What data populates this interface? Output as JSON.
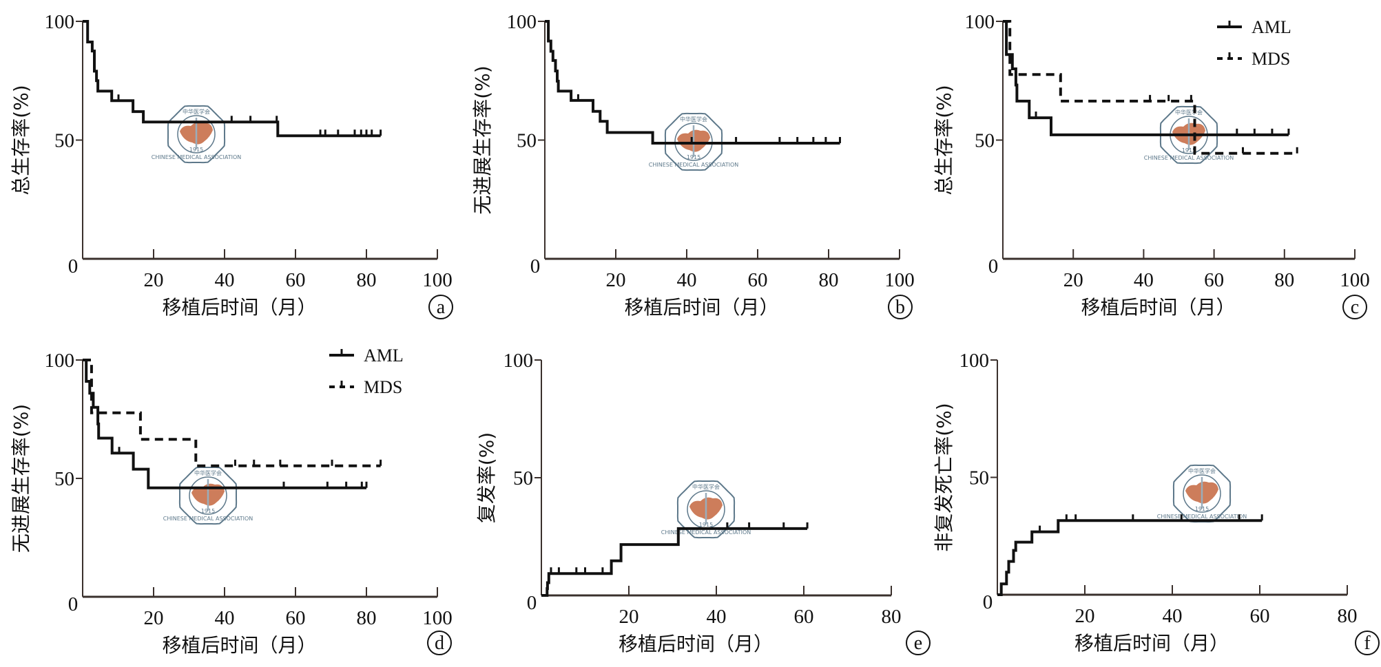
{
  "figure": {
    "x_axis_label": "移植后时间（月）",
    "logo": {
      "cn": "中华医学会",
      "en": "CHINESE MEDICAL ASSOCIATION",
      "year": "1915",
      "color": "#c8704a",
      "ring_color": "#4c6a7e"
    }
  },
  "chart_data": [
    {
      "panel": "a",
      "type": "line",
      "title": "",
      "xlabel": "移植后时间（月）",
      "ylabel": "总生存率(%)",
      "xlim": [
        0,
        100
      ],
      "ylim": [
        0,
        100
      ],
      "xticks": [
        "0",
        "20",
        "40",
        "60",
        "80",
        "100"
      ],
      "yticks": [
        "0",
        "50",
        "100"
      ],
      "legend": null,
      "series": [
        {
          "name": "all",
          "style": "solid",
          "steps": [
            [
              0,
              100
            ],
            [
              1.4,
              91.3
            ],
            [
              2.7,
              87.5
            ],
            [
              3.3,
              79
            ],
            [
              3.9,
              75
            ],
            [
              4.3,
              70.6
            ],
            [
              8.2,
              66.6
            ],
            [
              14.2,
              62
            ],
            [
              17.1,
              57.6
            ],
            [
              55,
              51.8
            ]
          ],
          "end": 84,
          "censored": [
            10.1,
            42,
            47.3,
            54.7,
            67,
            68.4,
            72,
            76.7,
            78.5,
            80,
            81.5,
            84
          ]
        }
      ]
    },
    {
      "panel": "b",
      "type": "line",
      "title": "",
      "xlabel": "移植后时间（月）",
      "ylabel": "无进展生存率(%)",
      "xlim": [
        0,
        100
      ],
      "ylim": [
        0,
        100
      ],
      "xticks": [
        "0",
        "20",
        "40",
        "60",
        "80",
        "100"
      ],
      "yticks": [
        "0",
        "50",
        "100"
      ],
      "legend": null,
      "series": [
        {
          "name": "all",
          "style": "solid",
          "steps": [
            [
              0,
              100
            ],
            [
              1,
              91.7
            ],
            [
              1.7,
              87.4
            ],
            [
              2.3,
              83.5
            ],
            [
              3,
              79.1
            ],
            [
              3.5,
              74.8
            ],
            [
              3.8,
              70.6
            ],
            [
              7.4,
              66.7
            ],
            [
              13.6,
              62.1
            ],
            [
              15.6,
              57.9
            ],
            [
              17.6,
              53.2
            ],
            [
              30.4,
              48.7
            ]
          ],
          "end": 83.2,
          "censored": [
            9.4,
            41.4,
            53.9,
            66.2,
            71.2,
            75.7,
            79.2,
            83.2
          ]
        }
      ]
    },
    {
      "panel": "c",
      "type": "line",
      "title": "",
      "xlabel": "移植后时间（月）",
      "ylabel": "总生存率(%)",
      "xlim": [
        0,
        100
      ],
      "ylim": [
        0,
        100
      ],
      "xticks": [
        "0",
        "20",
        "40",
        "60",
        "80",
        "100"
      ],
      "yticks": [
        "0",
        "50",
        "100"
      ],
      "legend": "top-right",
      "series": [
        {
          "name": "AML",
          "style": "solid",
          "steps": [
            [
              0,
              100
            ],
            [
              1,
              86
            ],
            [
              2.7,
              80
            ],
            [
              3.7,
              73.2
            ],
            [
              4,
              66.4
            ],
            [
              7.5,
              59.4
            ],
            [
              13.7,
              52.2
            ]
          ],
          "end": 81.2,
          "censored": [
            9.4,
            66.5,
            71.5,
            76.5,
            81.2
          ]
        },
        {
          "name": "MDS",
          "style": "dashed",
          "steps": [
            [
              0,
              100
            ],
            [
              2,
              77.6
            ],
            [
              16.4,
              66.4
            ],
            [
              54.5,
              44.4
            ]
          ],
          "end": 83.6,
          "censored": [
            41.8,
            47.1,
            53.5,
            68.2,
            83.6
          ]
        }
      ]
    },
    {
      "panel": "d",
      "type": "line",
      "title": "",
      "xlabel": "移植后时间（月）",
      "ylabel": "无进展生存率(%)",
      "xlim": [
        0,
        100
      ],
      "ylim": [
        0,
        100
      ],
      "xticks": [
        "0",
        "20",
        "40",
        "60",
        "80",
        "100"
      ],
      "yticks": [
        "0",
        "50",
        "100"
      ],
      "legend": "top-right",
      "series": [
        {
          "name": "AML",
          "style": "solid",
          "steps": [
            [
              0,
              100
            ],
            [
              1,
              91
            ],
            [
              2,
              86
            ],
            [
              3,
              80
            ],
            [
              4.3,
              73
            ],
            [
              4.5,
              67
            ],
            [
              8.3,
              60.7
            ],
            [
              14.3,
              53.9
            ],
            [
              18.5,
              46
            ]
          ],
          "end": 80,
          "censored": [
            10.3,
            56.7,
            69,
            74.3,
            78.7,
            80
          ]
        },
        {
          "name": "MDS",
          "style": "dashed",
          "steps": [
            [
              0,
              100
            ],
            [
              2.5,
              77.7
            ],
            [
              16.3,
              66.5
            ],
            [
              31.9,
              55.3
            ]
          ],
          "end": 84,
          "censored": [
            43,
            48.3,
            55.7,
            70.3,
            84
          ]
        }
      ]
    },
    {
      "panel": "e",
      "type": "line",
      "title": "",
      "xlabel": "移植后时间（月）",
      "ylabel": "复发率(%)",
      "xlim": [
        0,
        80
      ],
      "ylim": [
        0,
        100
      ],
      "xticks": [
        "0",
        "20",
        "40",
        "60",
        "80"
      ],
      "yticks": [
        "0",
        "50",
        "100"
      ],
      "legend": null,
      "series": [
        {
          "name": "all",
          "style": "solid",
          "steps": [
            [
              0,
              0
            ],
            [
              1.3,
              2.9
            ],
            [
              1.4,
              5.4
            ],
            [
              1.7,
              9.3
            ],
            [
              16,
              14.7
            ],
            [
              18.2,
              21.6
            ],
            [
              31.3,
              28.4
            ]
          ],
          "end": 60.8,
          "censored": [
            2.2,
            4,
            8,
            10,
            14,
            42.5,
            47.5,
            55.4,
            60.8
          ]
        }
      ]
    },
    {
      "panel": "f",
      "type": "line",
      "title": "",
      "xlabel": "移植后时间（月）",
      "ylabel": "非复发死亡率(%)",
      "xlim": [
        0,
        80
      ],
      "ylim": [
        0,
        100
      ],
      "xticks": [
        "0",
        "20",
        "40",
        "60",
        "80"
      ],
      "yticks": [
        "0",
        "50",
        "100"
      ],
      "legend": null,
      "series": [
        {
          "name": "all",
          "style": "solid",
          "steps": [
            [
              0,
              0
            ],
            [
              0.9,
              4.6
            ],
            [
              2.1,
              9.6
            ],
            [
              2.6,
              14.2
            ],
            [
              3.7,
              18.9
            ],
            [
              4.2,
              22.4
            ],
            [
              7.9,
              26.8
            ],
            [
              13.9,
              31.6
            ]
          ],
          "end": 60.5,
          "censored": [
            9.7,
            15.8,
            17.9,
            31,
            42.1,
            55.3,
            60.5
          ]
        }
      ]
    }
  ]
}
